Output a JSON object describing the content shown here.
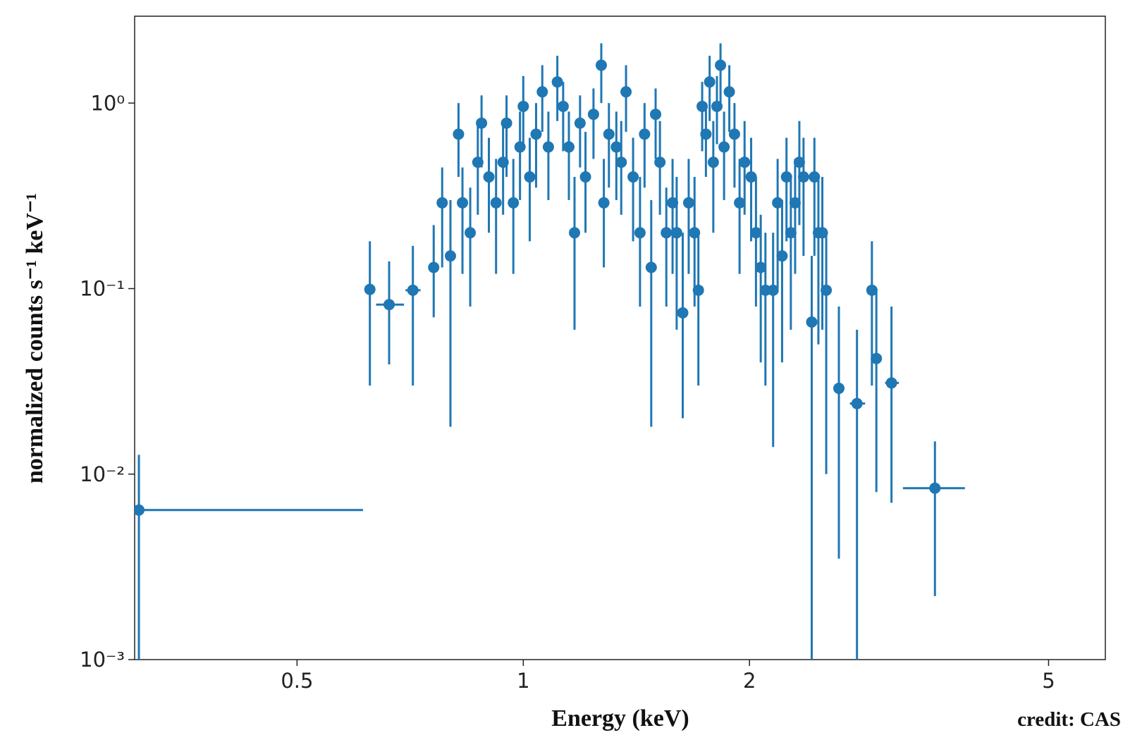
{
  "chart_data": {
    "type": "scatter",
    "x_label": "Energy (keV)",
    "y_label": "normalized counts s⁻¹ keV⁻¹",
    "credit": "credit: CAS",
    "log_x": true,
    "log_y": true,
    "color": "#1f77b4",
    "xlim": [
      0.304,
      5.95
    ],
    "ylim": [
      0.001,
      2.94
    ],
    "xticks": [
      0.5,
      1,
      2,
      5
    ],
    "yticks": [
      {
        "value": 0.001,
        "label": "10⁻³"
      },
      {
        "value": 0.01,
        "label": "10⁻²"
      },
      {
        "value": 0.1,
        "label": "10⁻¹"
      },
      {
        "value": 1,
        "label": "10⁰"
      }
    ],
    "x": [
      0.308,
      0.625,
      0.663,
      0.713,
      0.76,
      0.78,
      0.8,
      0.82,
      0.83,
      0.85,
      0.87,
      0.88,
      0.9,
      0.92,
      0.94,
      0.95,
      0.97,
      0.99,
      1.0,
      1.02,
      1.04,
      1.06,
      1.08,
      1.11,
      1.13,
      1.15,
      1.17,
      1.19,
      1.21,
      1.24,
      1.27,
      1.28,
      1.3,
      1.33,
      1.35,
      1.37,
      1.4,
      1.43,
      1.45,
      1.48,
      1.5,
      1.52,
      1.55,
      1.58,
      1.6,
      1.63,
      1.66,
      1.69,
      1.71,
      1.73,
      1.75,
      1.77,
      1.79,
      1.81,
      1.83,
      1.85,
      1.88,
      1.91,
      1.94,
      1.97,
      2.01,
      2.04,
      2.07,
      2.1,
      2.15,
      2.18,
      2.21,
      2.24,
      2.27,
      2.3,
      2.33,
      2.36,
      2.42,
      2.44,
      2.47,
      2.5,
      2.53,
      2.63,
      2.78,
      2.91,
      2.95,
      3.09,
      3.53
    ],
    "values": [
      0.0064,
      0.099,
      0.082,
      0.098,
      0.13,
      0.29,
      0.15,
      0.68,
      0.29,
      0.2,
      0.48,
      0.78,
      0.4,
      0.29,
      0.48,
      0.78,
      0.29,
      0.58,
      0.96,
      0.4,
      0.68,
      1.15,
      0.58,
      1.3,
      0.96,
      0.58,
      0.2,
      0.78,
      0.4,
      0.87,
      1.6,
      0.29,
      0.68,
      0.58,
      0.48,
      1.15,
      0.4,
      0.2,
      0.68,
      0.13,
      0.87,
      0.48,
      0.2,
      0.29,
      0.2,
      0.074,
      0.29,
      0.2,
      0.098,
      0.96,
      0.68,
      1.3,
      0.48,
      0.96,
      1.6,
      0.58,
      1.15,
      0.68,
      0.29,
      0.48,
      0.4,
      0.2,
      0.13,
      0.098,
      0.098,
      0.29,
      0.15,
      0.4,
      0.2,
      0.29,
      0.48,
      0.4,
      0.066,
      0.4,
      0.2,
      0.2,
      0.098,
      0.029,
      0.024,
      0.098,
      0.042,
      0.031,
      0.0084
    ],
    "y_low": [
      0.001,
      0.03,
      0.039,
      0.03,
      0.07,
      0.13,
      0.018,
      0.4,
      0.12,
      0.08,
      0.25,
      0.45,
      0.2,
      0.12,
      0.25,
      0.4,
      0.12,
      0.3,
      0.6,
      0.18,
      0.35,
      0.7,
      0.3,
      0.8,
      0.55,
      0.3,
      0.06,
      0.45,
      0.2,
      0.5,
      1.0,
      0.13,
      0.35,
      0.3,
      0.25,
      0.7,
      0.18,
      0.08,
      0.35,
      0.018,
      0.5,
      0.25,
      0.08,
      0.12,
      0.06,
      0.02,
      0.12,
      0.08,
      0.03,
      0.55,
      0.4,
      0.8,
      0.2,
      0.6,
      1.0,
      0.3,
      0.7,
      0.35,
      0.12,
      0.25,
      0.18,
      0.08,
      0.04,
      0.03,
      0.014,
      0.1,
      0.04,
      0.18,
      0.06,
      0.12,
      0.22,
      0.15,
      0.001,
      0.15,
      0.05,
      0.06,
      0.01,
      0.0035,
      0.001,
      0.03,
      0.008,
      0.007,
      0.0022
    ],
    "y_high": [
      0.0127,
      0.18,
      0.14,
      0.17,
      0.22,
      0.45,
      0.3,
      1.0,
      0.45,
      0.35,
      0.8,
      1.1,
      0.65,
      0.5,
      0.8,
      1.1,
      0.5,
      0.9,
      1.4,
      0.65,
      1.0,
      1.6,
      0.9,
      1.8,
      1.3,
      0.9,
      0.4,
      1.1,
      0.7,
      1.2,
      2.1,
      0.5,
      1.0,
      0.9,
      0.8,
      1.6,
      0.65,
      0.4,
      1.0,
      0.3,
      1.2,
      0.8,
      0.35,
      0.5,
      0.4,
      0.2,
      0.5,
      0.4,
      0.2,
      1.3,
      1.0,
      1.8,
      0.8,
      1.4,
      2.1,
      0.9,
      1.6,
      1.0,
      0.5,
      0.8,
      0.65,
      0.4,
      0.25,
      0.2,
      0.2,
      0.5,
      0.3,
      0.65,
      0.4,
      0.5,
      0.8,
      0.65,
      0.15,
      0.65,
      0.4,
      0.4,
      0.2,
      0.08,
      0.06,
      0.18,
      0.1,
      0.08,
      0.015
    ],
    "x_low": [
      0.304,
      0.617,
      0.637,
      0.697,
      0.75,
      0.77,
      0.79,
      0.81,
      0.82,
      0.84,
      0.86,
      0.87,
      0.89,
      0.91,
      0.93,
      0.94,
      0.96,
      0.98,
      0.99,
      1.01,
      1.03,
      1.05,
      1.07,
      1.1,
      1.12,
      1.14,
      1.16,
      1.18,
      1.2,
      1.23,
      1.26,
      1.27,
      1.29,
      1.32,
      1.34,
      1.36,
      1.39,
      1.42,
      1.44,
      1.47,
      1.49,
      1.51,
      1.54,
      1.57,
      1.59,
      1.62,
      1.65,
      1.68,
      1.7,
      1.72,
      1.74,
      1.76,
      1.78,
      1.8,
      1.82,
      1.84,
      1.87,
      1.9,
      1.93,
      1.96,
      2.0,
      2.03,
      2.06,
      2.09,
      2.14,
      2.17,
      2.2,
      2.23,
      2.26,
      2.29,
      2.32,
      2.35,
      2.41,
      2.43,
      2.46,
      2.49,
      2.52,
      2.6,
      2.72,
      2.89,
      2.93,
      3.03,
      3.2
    ],
    "x_high": [
      0.612,
      0.633,
      0.694,
      0.73,
      0.77,
      0.79,
      0.81,
      0.83,
      0.84,
      0.86,
      0.88,
      0.89,
      0.91,
      0.93,
      0.95,
      0.96,
      0.98,
      1.0,
      1.01,
      1.03,
      1.05,
      1.07,
      1.09,
      1.12,
      1.14,
      1.16,
      1.18,
      1.2,
      1.22,
      1.25,
      1.28,
      1.29,
      1.31,
      1.34,
      1.36,
      1.38,
      1.41,
      1.44,
      1.46,
      1.49,
      1.51,
      1.53,
      1.56,
      1.59,
      1.61,
      1.64,
      1.67,
      1.7,
      1.72,
      1.74,
      1.76,
      1.78,
      1.8,
      1.82,
      1.84,
      1.86,
      1.89,
      1.92,
      1.95,
      1.98,
      2.02,
      2.05,
      2.08,
      2.11,
      2.16,
      2.19,
      2.22,
      2.25,
      2.28,
      2.31,
      2.34,
      2.37,
      2.43,
      2.45,
      2.48,
      2.51,
      2.54,
      2.66,
      2.85,
      2.93,
      2.97,
      3.16,
      3.87
    ]
  }
}
